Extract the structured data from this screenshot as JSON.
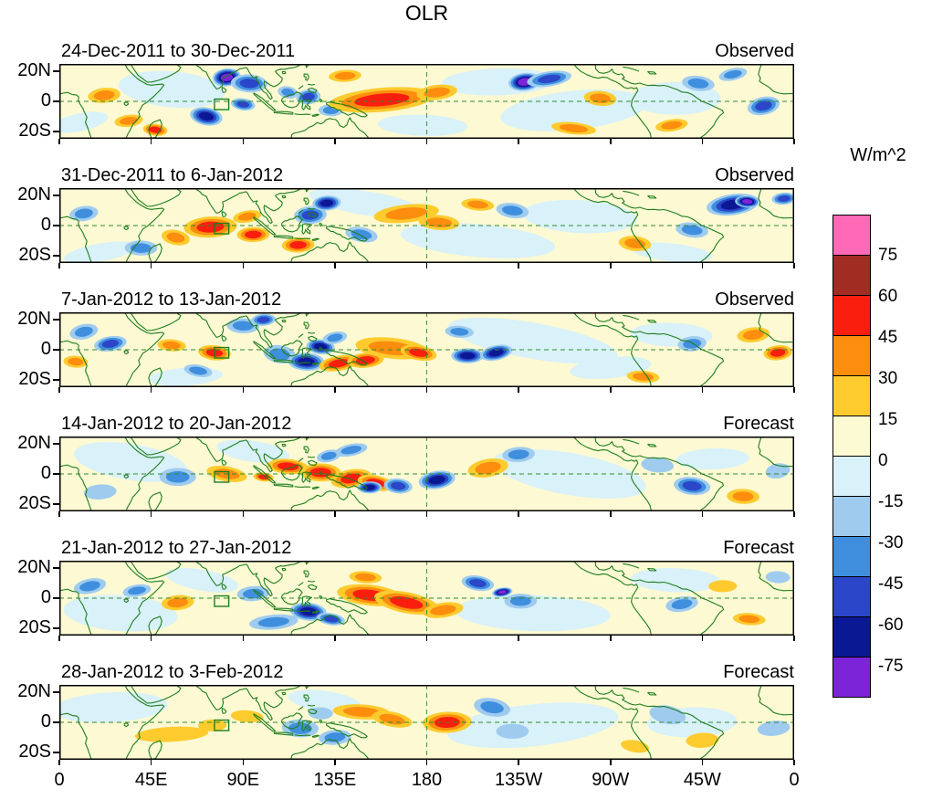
{
  "title": "OLR",
  "colorbar": {
    "units": "W/m^2"
  },
  "chart_data": {
    "type": "heatmap",
    "title": "OLR",
    "units": "W/m^2",
    "description": "Six weekly OLR anomaly maps over the tropical band (approx 25S-25N, 0-360E); first three panels observed, last three forecast; filled contours every 15 W/m^2.",
    "x_ticks": [
      "0",
      "45E",
      "90E",
      "135E",
      "180",
      "135W",
      "90W",
      "45W",
      "0"
    ],
    "x_tick_lons": [
      0,
      45,
      90,
      135,
      180,
      225,
      270,
      315,
      360
    ],
    "y_ticks": [
      "20N",
      "0",
      "20S"
    ],
    "y_tick_lats": [
      20,
      0,
      -20
    ],
    "lon_range": [
      0,
      360
    ],
    "lat_range": [
      -25,
      25
    ],
    "colorbar_tick_labels": [
      "75",
      "60",
      "45",
      "30",
      "15",
      "0",
      "-15",
      "-30",
      "-45",
      "-60",
      "-75"
    ],
    "colorbar_cells": [
      {
        "range": "> 75",
        "color": "#FF69B8"
      },
      {
        "range": "60 to 75",
        "color": "#A02C22"
      },
      {
        "range": "45 to 60",
        "color": "#FA1E0F"
      },
      {
        "range": "30 to 45",
        "color": "#FC8D0D"
      },
      {
        "range": "15 to 30",
        "color": "#FECB2F"
      },
      {
        "range": "0 to 15",
        "color": "#FCFAD3"
      },
      {
        "range": "-15 to 0",
        "color": "#D9F1F8"
      },
      {
        "range": "-30 to -15",
        "color": "#9FCBEF"
      },
      {
        "range": "-45 to -30",
        "color": "#3F8FDE"
      },
      {
        "range": "-60 to -45",
        "color": "#2B46C8"
      },
      {
        "range": "-75 to -60",
        "color": "#0B1894"
      },
      {
        "range": "< -75",
        "color": "#7B24D8"
      }
    ],
    "map_colors": {
      "background": "#FCF9D3",
      "coastline": "#1E7E1E",
      "gridline": "#2E8B2E",
      "border": "#000000"
    },
    "index_box": {
      "lon_min": 76,
      "lon_max": 83,
      "lat_min": -5.5,
      "lat_max": 1.5
    },
    "panels": [
      {
        "label": "24-Dec-2011 to 30-Dec-2011",
        "kind": "Observed",
        "anomalies": [
          [
            55,
            8,
            26,
            12,
            -10
          ],
          [
            215,
            13,
            28,
            9,
            -10
          ],
          [
            252,
            -6,
            36,
            13,
            -10
          ],
          [
            302,
            2,
            22,
            11,
            -10
          ],
          [
            178,
            -16,
            22,
            7,
            -10
          ],
          [
            10,
            -14,
            14,
            6,
            -10
          ],
          [
            22,
            4,
            8,
            5,
            30
          ],
          [
            34,
            -13,
            7,
            4,
            30
          ],
          [
            47,
            -19,
            6,
            4,
            45
          ],
          [
            82,
            16,
            7,
            6,
            -75
          ],
          [
            93,
            12,
            9,
            6,
            -45
          ],
          [
            72,
            -10,
            8,
            6,
            -60
          ],
          [
            90,
            -2,
            6,
            4,
            -45
          ],
          [
            112,
            6,
            5,
            4,
            -30
          ],
          [
            122,
            3,
            6,
            5,
            -45
          ],
          [
            133,
            -6,
            6,
            4,
            -30
          ],
          [
            140,
            17,
            8,
            4,
            30
          ],
          [
            158,
            1,
            26,
            8,
            45
          ],
          [
            185,
            6,
            10,
            5,
            30
          ],
          [
            228,
            13,
            8,
            6,
            -75
          ],
          [
            240,
            15,
            11,
            5,
            -45
          ],
          [
            265,
            2,
            8,
            5,
            30
          ],
          [
            252,
            -18,
            11,
            4,
            30
          ],
          [
            313,
            12,
            8,
            5,
            -30
          ],
          [
            345,
            -3,
            8,
            6,
            -45
          ],
          [
            300,
            -16,
            8,
            4,
            30
          ],
          [
            330,
            18,
            7,
            4,
            -30
          ]
        ]
      },
      {
        "label": "31-Dec-2011 to 6-Jan-2012",
        "kind": "Observed",
        "anomalies": [
          [
            150,
            15,
            28,
            8,
            -10
          ],
          [
            205,
            -10,
            38,
            11,
            -10
          ],
          [
            255,
            6,
            28,
            11,
            -10
          ],
          [
            20,
            -18,
            18,
            6,
            -10
          ],
          [
            300,
            -18,
            20,
            6,
            -10
          ],
          [
            12,
            8,
            7,
            5,
            -30
          ],
          [
            40,
            -15,
            8,
            5,
            -30
          ],
          [
            57,
            -8,
            7,
            5,
            30
          ],
          [
            74,
            -1,
            13,
            7,
            45
          ],
          [
            92,
            6,
            7,
            4,
            30
          ],
          [
            95,
            -6,
            8,
            5,
            45
          ],
          [
            117,
            -13,
            8,
            5,
            45
          ],
          [
            123,
            7,
            8,
            6,
            -45
          ],
          [
            131,
            15,
            7,
            5,
            -60
          ],
          [
            148,
            -6,
            8,
            5,
            -30
          ],
          [
            170,
            8,
            16,
            6,
            30
          ],
          [
            186,
            2,
            10,
            5,
            30
          ],
          [
            205,
            14,
            8,
            4,
            30
          ],
          [
            222,
            10,
            8,
            5,
            -30
          ],
          [
            330,
            14,
            13,
            7,
            -60
          ],
          [
            337,
            16,
            6,
            4,
            -75
          ],
          [
            310,
            -3,
            8,
            5,
            -30
          ],
          [
            282,
            -12,
            8,
            5,
            30
          ],
          [
            355,
            18,
            6,
            4,
            -45
          ]
        ]
      },
      {
        "label": "7-Jan-2012 to 13-Jan-2012",
        "kind": "Observed",
        "anomalies": [
          [
            232,
            6,
            42,
            12,
            -10
          ],
          [
            300,
            10,
            20,
            8,
            -10
          ],
          [
            62,
            -18,
            18,
            6,
            -10
          ],
          [
            270,
            -12,
            20,
            7,
            -10
          ],
          [
            12,
            12,
            7,
            5,
            -30
          ],
          [
            25,
            4,
            8,
            5,
            -45
          ],
          [
            8,
            -8,
            6,
            4,
            30
          ],
          [
            55,
            3,
            7,
            4,
            30
          ],
          [
            76,
            -2,
            8,
            5,
            45
          ],
          [
            68,
            -14,
            7,
            4,
            -30
          ],
          [
            90,
            16,
            8,
            5,
            -30
          ],
          [
            100,
            20,
            6,
            4,
            -45
          ],
          [
            108,
            -3,
            8,
            6,
            -30
          ],
          [
            121,
            -8,
            9,
            6,
            -60
          ],
          [
            128,
            2,
            7,
            5,
            -60
          ],
          [
            135,
            8,
            6,
            4,
            -30
          ],
          [
            137,
            -9,
            10,
            5,
            45
          ],
          [
            150,
            -7,
            9,
            5,
            45
          ],
          [
            163,
            1,
            18,
            7,
            30
          ],
          [
            176,
            -2,
            9,
            5,
            45
          ],
          [
            200,
            -4,
            8,
            5,
            -60
          ],
          [
            214,
            -2,
            8,
            5,
            -60
          ],
          [
            196,
            12,
            7,
            4,
            -30
          ],
          [
            310,
            4,
            7,
            5,
            -30
          ],
          [
            340,
            10,
            8,
            5,
            30
          ],
          [
            352,
            -2,
            7,
            5,
            45
          ],
          [
            286,
            -18,
            8,
            4,
            30
          ]
        ]
      },
      {
        "label": "14-Jan-2012 to 20-Jan-2012",
        "kind": "Forecast",
        "anomalies": [
          [
            35,
            8,
            28,
            12,
            -10
          ],
          [
            250,
            0,
            38,
            14,
            -10
          ],
          [
            320,
            10,
            18,
            7,
            -10
          ],
          [
            95,
            15,
            18,
            7,
            -10
          ],
          [
            58,
            -2,
            9,
            6,
            -30
          ],
          [
            20,
            -12,
            8,
            5,
            -15
          ],
          [
            82,
            0,
            10,
            5,
            30
          ],
          [
            100,
            -2,
            5,
            3,
            45
          ],
          [
            112,
            5,
            10,
            5,
            45
          ],
          [
            128,
            1,
            10,
            6,
            45
          ],
          [
            143,
            -3,
            10,
            6,
            45
          ],
          [
            155,
            -6,
            9,
            5,
            45
          ],
          [
            152,
            -9,
            6,
            4,
            -60
          ],
          [
            166,
            -8,
            7,
            5,
            -45
          ],
          [
            185,
            -4,
            9,
            6,
            -60
          ],
          [
            143,
            16,
            8,
            4,
            -30
          ],
          [
            132,
            12,
            6,
            4,
            -30
          ],
          [
            210,
            4,
            10,
            6,
            30
          ],
          [
            225,
            13,
            8,
            5,
            -30
          ],
          [
            310,
            -8,
            9,
            6,
            -45
          ],
          [
            293,
            6,
            8,
            5,
            -15
          ],
          [
            335,
            -15,
            8,
            5,
            30
          ],
          [
            352,
            2,
            6,
            5,
            -15
          ]
        ]
      },
      {
        "label": "21-Jan-2012 to 27-Jan-2012",
        "kind": "Forecast",
        "anomalies": [
          [
            30,
            -10,
            28,
            12,
            -10
          ],
          [
            232,
            -10,
            38,
            12,
            -10
          ],
          [
            302,
            12,
            22,
            8,
            -10
          ],
          [
            70,
            12,
            18,
            7,
            -10
          ],
          [
            15,
            8,
            8,
            5,
            -30
          ],
          [
            38,
            5,
            7,
            4,
            -30
          ],
          [
            58,
            -3,
            8,
            5,
            30
          ],
          [
            95,
            3,
            8,
            5,
            -30
          ],
          [
            105,
            -16,
            12,
            5,
            -30
          ],
          [
            122,
            -9,
            9,
            6,
            -60
          ],
          [
            133,
            -14,
            7,
            4,
            -45
          ],
          [
            150,
            14,
            8,
            4,
            30
          ],
          [
            152,
            2,
            16,
            7,
            45
          ],
          [
            170,
            -3,
            16,
            7,
            45
          ],
          [
            188,
            -8,
            10,
            5,
            30
          ],
          [
            205,
            10,
            8,
            5,
            -45
          ],
          [
            217,
            4,
            5,
            3,
            -75
          ],
          [
            226,
            -2,
            8,
            5,
            -30
          ],
          [
            305,
            -4,
            8,
            5,
            -30
          ],
          [
            338,
            -14,
            8,
            4,
            30
          ],
          [
            325,
            8,
            7,
            4,
            15
          ],
          [
            352,
            14,
            6,
            4,
            -15
          ]
        ]
      },
      {
        "label": "28-Jan-2012 to 3-Feb-2012",
        "kind": "Forecast",
        "anomalies": [
          [
            25,
            10,
            28,
            10,
            -10
          ],
          [
            232,
            -2,
            42,
            14,
            -10
          ],
          [
            130,
            14,
            18,
            7,
            -10
          ],
          [
            310,
            0,
            22,
            10,
            -10
          ],
          [
            55,
            -8,
            18,
            5,
            15
          ],
          [
            92,
            4,
            8,
            4,
            15
          ],
          [
            75,
            -2,
            7,
            4,
            15
          ],
          [
            118,
            -4,
            9,
            6,
            -30
          ],
          [
            135,
            -10,
            8,
            5,
            -30
          ],
          [
            128,
            6,
            6,
            4,
            -15
          ],
          [
            148,
            7,
            14,
            5,
            30
          ],
          [
            163,
            2,
            10,
            5,
            30
          ],
          [
            190,
            0,
            12,
            7,
            45
          ],
          [
            212,
            10,
            9,
            6,
            -30
          ],
          [
            222,
            -6,
            8,
            5,
            -15
          ],
          [
            298,
            5,
            9,
            6,
            -15
          ],
          [
            315,
            -12,
            8,
            5,
            15
          ],
          [
            282,
            -16,
            7,
            4,
            15
          ],
          [
            350,
            -4,
            8,
            5,
            -15
          ]
        ]
      }
    ]
  }
}
